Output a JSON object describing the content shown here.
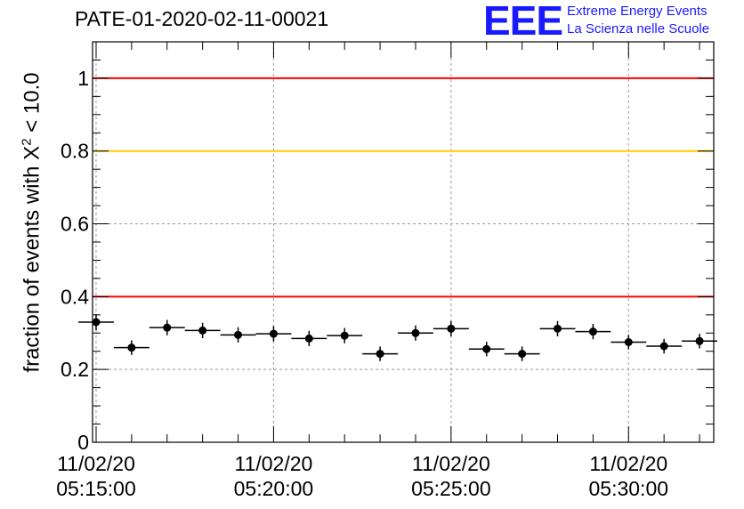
{
  "header": {
    "title": "PATE-01-2020-02-11-00021",
    "logo_text": "EEE",
    "logo_line1": "Extreme Energy Events",
    "logo_line2": "La Scienza nelle Scuole"
  },
  "chart_data": {
    "type": "scatter",
    "ylabel_prefix": "fraction of events with X",
    "ylabel_sup": "2",
    "ylabel_suffix": " < 10.0",
    "x_range_minutes": [
      14.9,
      32.4
    ],
    "ylim": [
      0,
      1.1
    ],
    "y_ticks": [
      0,
      0.2,
      0.4,
      0.6,
      0.8,
      1
    ],
    "y_tick_labels": [
      "0",
      "0.2",
      "0.4",
      "0.6",
      "0.8",
      "1"
    ],
    "x_ticks_minutes": [
      15,
      20,
      25,
      30
    ],
    "x_tick_labels": [
      [
        "11/02/20",
        "05:15:00"
      ],
      [
        "11/02/20",
        "05:20:00"
      ],
      [
        "11/02/20",
        "05:25:00"
      ],
      [
        "11/02/20",
        "05:30:00"
      ]
    ],
    "grid": true,
    "reference_lines": [
      {
        "y": 1.0,
        "color": "#ff0000"
      },
      {
        "y": 0.8,
        "color": "#ffcc00"
      },
      {
        "y": 0.4,
        "color": "#ff0000"
      }
    ],
    "series": [
      {
        "x_minutes": [
          15.0,
          16.0,
          17.0,
          18.0,
          19.0,
          20.0,
          21.0,
          22.0,
          23.0,
          24.0,
          25.0,
          26.0,
          27.0,
          28.0,
          29.0,
          30.0,
          31.0,
          32.0
        ],
        "x_halfwidth_minutes": 0.5,
        "y": [
          0.33,
          0.26,
          0.315,
          0.307,
          0.295,
          0.298,
          0.285,
          0.293,
          0.243,
          0.3,
          0.312,
          0.256,
          0.243,
          0.312,
          0.304,
          0.275,
          0.264,
          0.278
        ],
        "y_err": [
          0.022,
          0.02,
          0.021,
          0.021,
          0.021,
          0.021,
          0.021,
          0.021,
          0.02,
          0.021,
          0.021,
          0.02,
          0.02,
          0.021,
          0.021,
          0.02,
          0.02,
          0.02
        ],
        "color": "#000000"
      }
    ]
  }
}
